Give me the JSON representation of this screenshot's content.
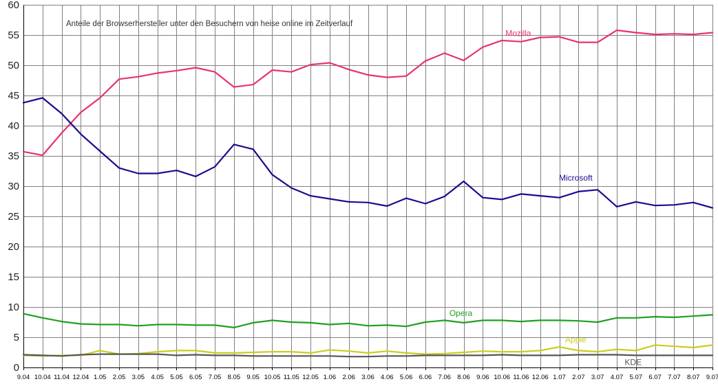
{
  "chart_data": {
    "type": "line",
    "title": "Anteile der Browserhersteller unter den Besuchern von heise online im Zeitverlauf",
    "xlabel": "",
    "ylabel": "",
    "ylim": [
      0,
      60
    ],
    "yticks": [
      0,
      5,
      10,
      15,
      20,
      25,
      30,
      35,
      40,
      45,
      50,
      55,
      60
    ],
    "grid": true,
    "categories": [
      "9.04",
      "10.04",
      "11.04",
      "12.04",
      "1.05",
      "2.05",
      "3.05",
      "4.05",
      "5.05",
      "6.05",
      "7.05",
      "8.05",
      "9.05",
      "10.05",
      "11.05",
      "12.05",
      "1.06",
      "2.06",
      "3.06",
      "4.06",
      "5.06",
      "6.06",
      "7.06",
      "8.06",
      "9.06",
      "10.06",
      "11.06",
      "12.06",
      "1.07",
      "2.07",
      "3.07",
      "4.07",
      "5.07",
      "6.07",
      "7.07",
      "8.07",
      "9.07"
    ],
    "series": [
      {
        "name": "Mozilla",
        "color": "#e8336a",
        "values": [
          35.7,
          35.1,
          38.8,
          42.2,
          44.6,
          47.7,
          48.1,
          48.7,
          49.1,
          49.6,
          48.9,
          46.4,
          46.8,
          49.2,
          48.9,
          50.1,
          50.4,
          49.3,
          48.4,
          48.0,
          48.2,
          50.7,
          52.0,
          50.8,
          53.0,
          54.1,
          53.9,
          54.6,
          54.7,
          53.8,
          53.8,
          55.8,
          55.4,
          55.1,
          55.2,
          55.1,
          55.4
        ]
      },
      {
        "name": "Microsoft",
        "color": "#1a0a8c",
        "values": [
          43.8,
          44.6,
          42.0,
          38.6,
          35.8,
          33.0,
          32.1,
          32.1,
          32.6,
          31.6,
          33.2,
          36.9,
          36.1,
          31.9,
          29.7,
          28.4,
          27.9,
          27.4,
          27.3,
          26.7,
          28.0,
          27.1,
          28.3,
          30.8,
          28.1,
          27.8,
          28.7,
          28.4,
          28.1,
          29.1,
          29.4,
          26.6,
          27.4,
          26.8,
          26.9,
          27.3,
          26.4
        ]
      },
      {
        "name": "Opera",
        "color": "#1ea01e",
        "values": [
          8.9,
          8.2,
          7.6,
          7.2,
          7.1,
          7.1,
          6.9,
          7.1,
          7.1,
          7.0,
          7.0,
          6.6,
          7.4,
          7.8,
          7.5,
          7.4,
          7.1,
          7.3,
          6.9,
          7.0,
          6.8,
          7.5,
          7.8,
          7.4,
          7.8,
          7.8,
          7.6,
          7.8,
          7.8,
          7.7,
          7.5,
          8.2,
          8.2,
          8.4,
          8.3,
          8.5,
          8.7
        ]
      },
      {
        "name": "Apple",
        "color": "#cccc1e",
        "values": [
          2.0,
          1.9,
          2.0,
          2.0,
          2.8,
          2.2,
          2.3,
          2.6,
          2.8,
          2.8,
          2.4,
          2.4,
          2.5,
          2.6,
          2.6,
          2.4,
          2.9,
          2.7,
          2.4,
          2.7,
          2.4,
          2.2,
          2.3,
          2.5,
          2.7,
          2.6,
          2.6,
          2.8,
          3.4,
          2.8,
          2.6,
          3.0,
          2.8,
          3.7,
          3.5,
          3.3,
          3.7
        ]
      },
      {
        "name": "KDE",
        "color": "#555555",
        "values": [
          2.1,
          2.0,
          1.9,
          2.1,
          2.2,
          2.2,
          2.2,
          2.2,
          2.0,
          2.1,
          2.0,
          2.0,
          1.9,
          1.9,
          1.9,
          1.9,
          1.9,
          1.8,
          1.8,
          1.9,
          1.9,
          2.0,
          2.0,
          2.0,
          2.0,
          2.1,
          2.0,
          2.0,
          2.0,
          2.1,
          2.1,
          2.1,
          2.0,
          2.0,
          2.0,
          2.0,
          2.0
        ]
      }
    ]
  }
}
